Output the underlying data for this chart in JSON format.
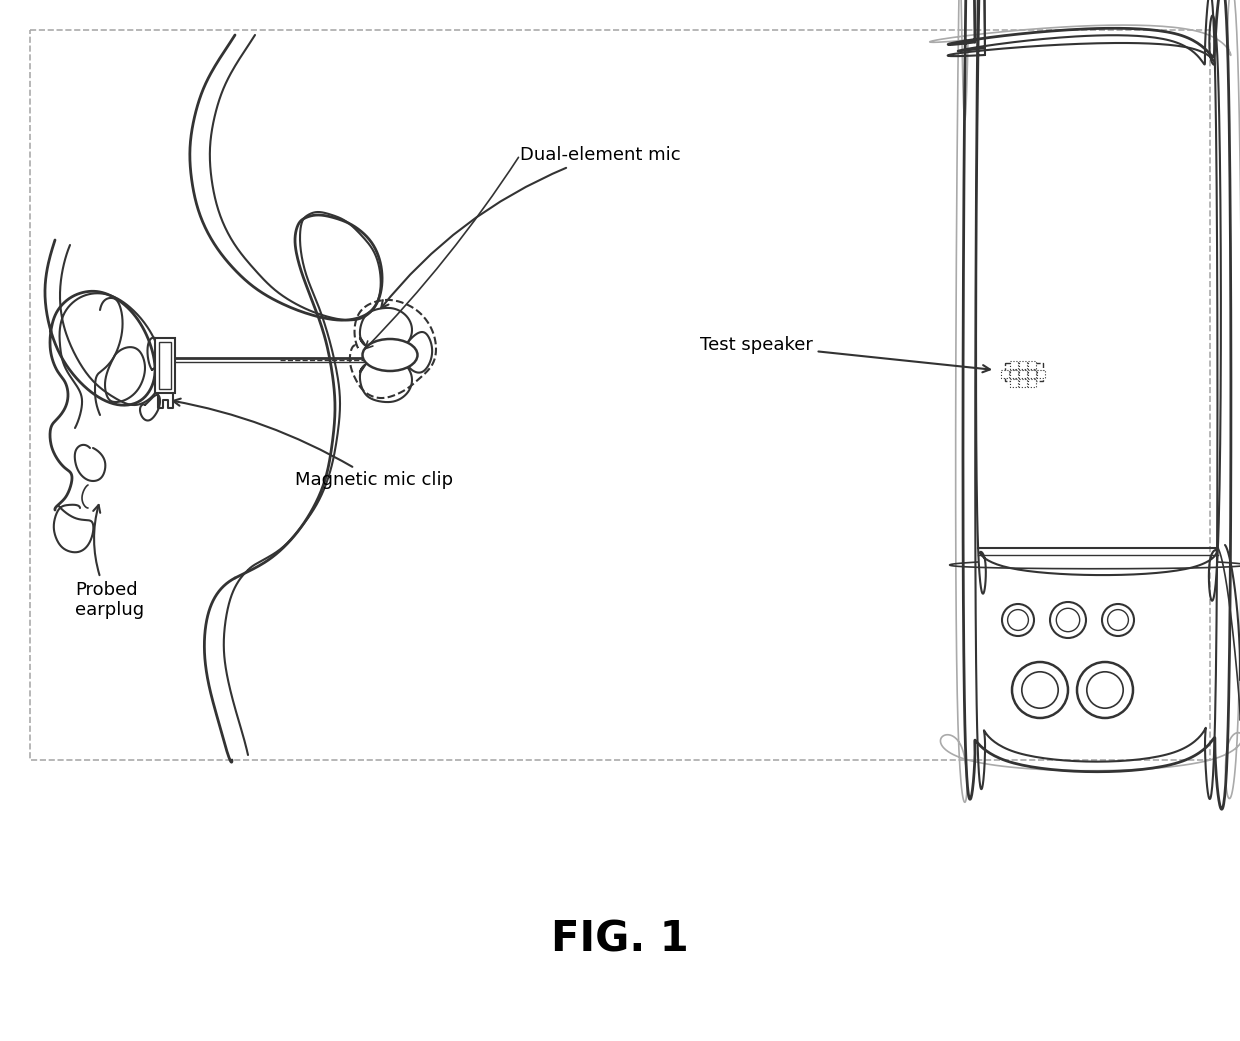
{
  "title": "FIG. 1",
  "title_fontsize": 30,
  "title_fontweight": "bold",
  "bg_color": "#ffffff",
  "line_color": "#333333",
  "label_dual_element_mic": "Dual-element mic",
  "label_magnetic_mic_clip": "Magnetic mic clip",
  "label_probed_earplug": "Probed\nearplug",
  "label_test_speaker": "Test speaker",
  "label_fontsize": 13,
  "fig_width": 12.4,
  "fig_height": 10.41,
  "dpi": 100
}
